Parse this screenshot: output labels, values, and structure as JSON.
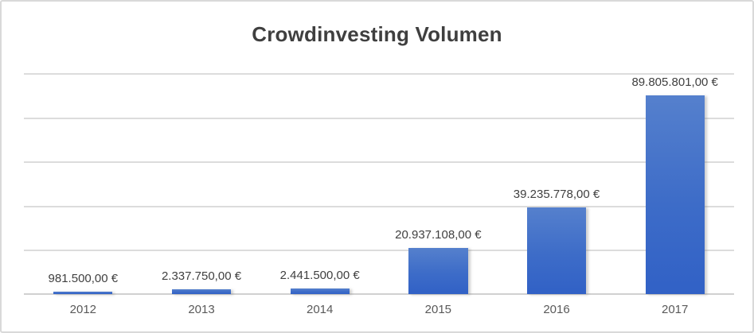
{
  "title": "Crowdinvesting Volumen",
  "colors": {
    "bar_gradient_top": "#5580cd",
    "bar_gradient_bottom": "#3161c6",
    "gridline": "#dcdcdc",
    "axis_line": "#d0d0d0",
    "frame_border": "#d9d9d9",
    "title_text": "#3f3f3f",
    "value_label_text": "#404040",
    "tick_label_text": "#595959",
    "background": "#ffffff"
  },
  "chart_data": {
    "type": "bar",
    "title": "Crowdinvesting Volumen",
    "categories": [
      "2012",
      "2013",
      "2014",
      "2015",
      "2016",
      "2017"
    ],
    "values": [
      981500,
      2337750,
      2441500,
      20937108,
      39235778,
      89805801
    ],
    "value_labels": [
      "981.500,00 €",
      "2.337.750,00 €",
      "2.441.500,00 €",
      "20.937.108,00 €",
      "39.235.778,00 €",
      "89.805.801,00 €"
    ],
    "xlabel": "",
    "ylabel": "",
    "ylim": [
      0,
      100000000
    ],
    "gridline_step": 20000000,
    "grid": true,
    "legend": false,
    "y_tick_labels_visible": false,
    "data_labels_visible": true
  }
}
